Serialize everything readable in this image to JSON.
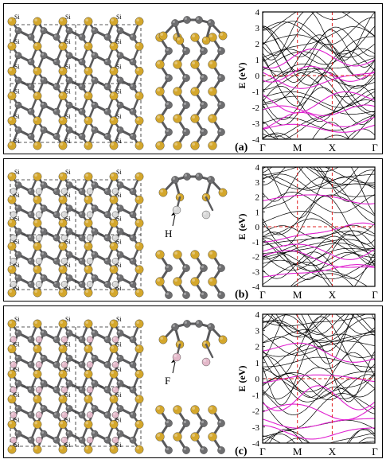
{
  "figure": {
    "panels": [
      {
        "label": "(a)",
        "atom_label": "Si",
        "inset_label": "",
        "chart": {
          "ylabel": "E (eV)",
          "ylim": [
            -4,
            4
          ],
          "yticks": [
            "4",
            "3",
            "2",
            "1",
            "0",
            "-1",
            "-2",
            "-3",
            "-4"
          ],
          "kpoints": [
            "Γ",
            "M",
            "X",
            "Γ"
          ],
          "fermi_level": 0
        }
      },
      {
        "label": "(b)",
        "atom_label": "Si",
        "inset_label": "H",
        "chart": {
          "ylabel": "E (eV)",
          "ylim": [
            -4,
            4
          ],
          "yticks": [
            "4",
            "3",
            "2",
            "1",
            "0",
            "-1",
            "-2",
            "-3",
            "-4"
          ],
          "kpoints": [
            "Γ",
            "M",
            "X",
            "Γ"
          ],
          "fermi_level": 0
        }
      },
      {
        "label": "(c)",
        "atom_label": "Si",
        "inset_label": "F",
        "chart": {
          "ylabel": "E (eV)",
          "ylim": [
            -4,
            4
          ],
          "yticks": [
            "4",
            "3",
            "2",
            "1",
            "0",
            "-1",
            "-2",
            "-3",
            "-4"
          ],
          "kpoints": [
            "Γ",
            "M",
            "X",
            "Γ"
          ],
          "fermi_level": 0
        }
      }
    ],
    "colors": {
      "si_atom": "#d4a72c",
      "c_atom": "#6e6e70",
      "h_atom": "#d8d8d8",
      "f_atom": "#e3b8c9",
      "bond": "#5a5a5c",
      "band_black": "#000000",
      "band_magenta": "#e020d0",
      "reference_line": "#e02020"
    }
  },
  "chart_data": [
    {
      "type": "line",
      "title": "",
      "xlabel": "",
      "ylabel": "E (eV)",
      "ylim": [
        -4,
        4
      ],
      "x_ticks": [
        "Γ",
        "M",
        "X",
        "Γ"
      ],
      "fermi_level": 0,
      "series": [
        {
          "name": "",
          "values": []
        }
      ]
    },
    {
      "type": "line",
      "title": "",
      "xlabel": "",
      "ylabel": "E (eV)",
      "ylim": [
        -4,
        4
      ],
      "x_ticks": [
        "Γ",
        "M",
        "X",
        "Γ"
      ],
      "fermi_level": 0,
      "series": [
        {
          "name": "",
          "values": []
        }
      ]
    },
    {
      "type": "line",
      "title": "",
      "xlabel": "",
      "ylabel": "E (eV)",
      "ylim": [
        -4,
        4
      ],
      "x_ticks": [
        "Γ",
        "M",
        "X",
        "Γ"
      ],
      "fermi_level": 0,
      "series": [
        {
          "name": "",
          "values": []
        }
      ]
    }
  ]
}
